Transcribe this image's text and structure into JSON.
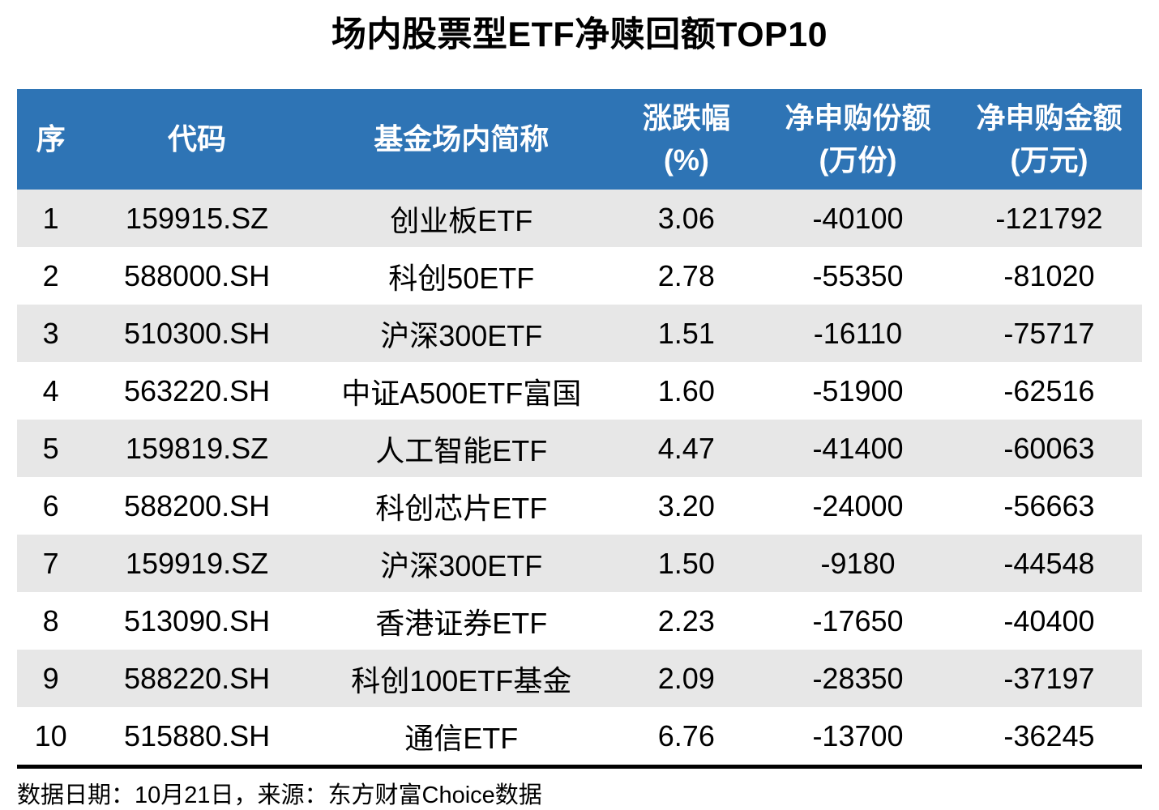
{
  "title": "场内股票型ETF净赎回额TOP10",
  "colors": {
    "header_bg": "#2E74B5",
    "header_text": "#FFFFFF",
    "stripe_row_bg": "#E7E7E7",
    "plain_row_bg": "#FFFFFF",
    "body_text": "#000000",
    "divider": "#000000"
  },
  "table": {
    "headers": [
      {
        "label": "序",
        "sub": ""
      },
      {
        "label": "代码",
        "sub": ""
      },
      {
        "label": "基金场内简称",
        "sub": ""
      },
      {
        "label": "涨跌幅",
        "sub": "(%)"
      },
      {
        "label": "净申购份额",
        "sub": "(万份)"
      },
      {
        "label": "净申购金额",
        "sub": "(万元)"
      }
    ]
  },
  "chart_data": {
    "type": "table",
    "title": "场内股票型ETF净赎回额TOP10",
    "columns": [
      "序",
      "代码",
      "基金场内简称",
      "涨跌幅(%)",
      "净申购份额(万份)",
      "净申购金额(万元)"
    ],
    "rows": [
      [
        "1",
        "159915.SZ",
        "创业板ETF",
        "3.06",
        "-40100",
        "-121792"
      ],
      [
        "2",
        "588000.SH",
        "科创50ETF",
        "2.78",
        "-55350",
        "-81020"
      ],
      [
        "3",
        "510300.SH",
        "沪深300ETF",
        "1.51",
        "-16110",
        "-75717"
      ],
      [
        "4",
        "563220.SH",
        "中证A500ETF富国",
        "1.60",
        "-51900",
        "-62516"
      ],
      [
        "5",
        "159819.SZ",
        "人工智能ETF",
        "4.47",
        "-41400",
        "-60063"
      ],
      [
        "6",
        "588200.SH",
        "科创芯片ETF",
        "3.20",
        "-24000",
        "-56663"
      ],
      [
        "7",
        "159919.SZ",
        "沪深300ETF",
        "1.50",
        "-9180",
        "-44548"
      ],
      [
        "8",
        "513090.SH",
        "香港证券ETF",
        "2.23",
        "-17650",
        "-40400"
      ],
      [
        "9",
        "588220.SH",
        "科创100ETF基金",
        "2.09",
        "-28350",
        "-37197"
      ],
      [
        "10",
        "515880.SH",
        "通信ETF",
        "6.76",
        "-13700",
        "-36245"
      ]
    ]
  },
  "footer": {
    "text": "数据日期：10月21日，来源：东方财富Choice数据"
  }
}
